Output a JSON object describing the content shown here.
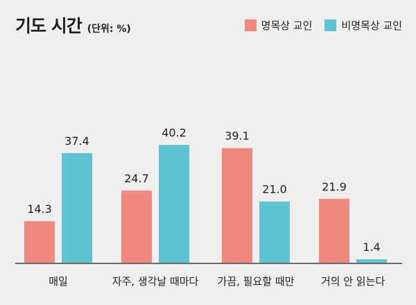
{
  "title": "기도 시간",
  "unit": "(단위: %)",
  "colors": {
    "series1": "#f08a80",
    "series2": "#5ec4d2",
    "axis": "#6b6b6b"
  },
  "legend": [
    {
      "label": "명목상 교인"
    },
    {
      "label": "비명목상 교인"
    }
  ],
  "chart_data": {
    "type": "bar",
    "categories": [
      "매일",
      "자주, 생각날 때마다",
      "가끔, 필요할 때만",
      "거의 안 읽는다"
    ],
    "series": [
      {
        "name": "명목상 교인",
        "values": [
          14.3,
          24.7,
          39.1,
          21.9
        ],
        "labels": [
          "14.3",
          "24.7",
          "39.1",
          "21.9"
        ]
      },
      {
        "name": "비명목상 교인",
        "values": [
          37.4,
          40.2,
          21.0,
          1.4
        ],
        "labels": [
          "37.4",
          "40.2",
          "21.0",
          "1.4"
        ]
      }
    ],
    "ylim": [
      0,
      40.2
    ],
    "grid": false,
    "legend_position": "top-right"
  }
}
